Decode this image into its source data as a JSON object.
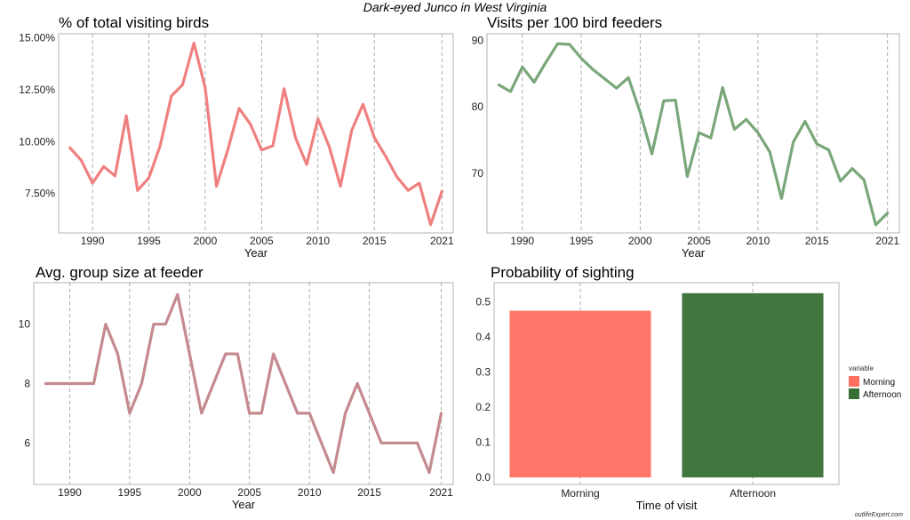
{
  "title": "Dark-eyed Junco in West Virginia",
  "credit": "outlifeExpert.com",
  "chart_data": [
    {
      "type": "line",
      "title": "% of total visiting birds",
      "xlabel": "Year",
      "ylabel": "",
      "xlim": [
        1987,
        2022
      ],
      "ylim": [
        5.6,
        15.2
      ],
      "x_ticks": [
        1990,
        1995,
        2000,
        2005,
        2010,
        2015,
        2021
      ],
      "y_ticks": [
        7.5,
        10,
        12.5,
        15
      ],
      "y_tick_labels": [
        "7.50%",
        "10.00%",
        "12.50%",
        "15.00%"
      ],
      "color": "#f08080",
      "grid": "vertical dashed",
      "series": [
        {
          "x": [
            1988,
            1989,
            1990,
            1991,
            1992,
            1993,
            1994,
            1995,
            1996,
            1997,
            1998,
            1999,
            2000,
            2001,
            2002,
            2003,
            2004,
            2005,
            2006,
            2007,
            2008,
            2009,
            2010,
            2011,
            2012,
            2013,
            2014,
            2015,
            2016,
            2017,
            2018,
            2019,
            2020,
            2021
          ],
          "values": [
            9.7,
            9.1,
            8.0,
            8.8,
            8.35,
            11.25,
            7.65,
            8.25,
            9.8,
            12.2,
            12.75,
            14.75,
            12.6,
            7.85,
            9.6,
            11.6,
            10.85,
            9.6,
            9.8,
            12.55,
            10.2,
            8.9,
            11.1,
            9.75,
            7.85,
            10.55,
            11.8,
            10.2,
            9.3,
            8.3,
            7.65,
            8.0,
            6.0,
            7.6
          ]
        }
      ]
    },
    {
      "type": "line",
      "title": "Visits per 100 bird feeders",
      "xlabel": "Year",
      "ylabel": "",
      "xlim": [
        1987,
        2022
      ],
      "ylim": [
        61,
        91
      ],
      "x_ticks": [
        1990,
        1995,
        2000,
        2005,
        2010,
        2015,
        2021
      ],
      "y_ticks": [
        70,
        80,
        90
      ],
      "y_tick_labels": [
        "70",
        "80",
        "90"
      ],
      "color": "#7aa77a",
      "grid": "vertical dashed",
      "series": [
        {
          "x": [
            1988,
            1989,
            1990,
            1991,
            1992,
            1993,
            1994,
            1995,
            1996,
            1997,
            1998,
            1999,
            2000,
            2001,
            2002,
            2003,
            2004,
            2005,
            2006,
            2007,
            2008,
            2009,
            2010,
            2011,
            2012,
            2013,
            2014,
            2015,
            2016,
            2017,
            2018,
            2019,
            2020,
            2021
          ],
          "values": [
            83.3,
            82.3,
            86.0,
            83.7,
            86.7,
            89.5,
            89.4,
            87.3,
            85.6,
            84.2,
            82.8,
            84.4,
            79.2,
            72.9,
            80.9,
            81.0,
            69.5,
            76.1,
            75.3,
            82.9,
            76.6,
            78.1,
            76.1,
            73.2,
            66.2,
            74.7,
            77.8,
            74.4,
            73.5,
            68.8,
            70.7,
            69.0,
            62.2,
            64.0
          ]
        }
      ]
    },
    {
      "type": "line",
      "title": "Avg. group size at feeder",
      "xlabel": "Year",
      "ylabel": "",
      "xlim": [
        1987,
        2022
      ],
      "ylim": [
        4.6,
        11.4
      ],
      "x_ticks": [
        1990,
        1995,
        2000,
        2005,
        2010,
        2015,
        2021
      ],
      "y_ticks": [
        6,
        8,
        10
      ],
      "y_tick_labels": [
        "6",
        "8",
        "10"
      ],
      "color": "#c48a8f",
      "grid": "vertical dashed",
      "series": [
        {
          "x": [
            1988,
            1989,
            1990,
            1991,
            1992,
            1993,
            1994,
            1995,
            1996,
            1997,
            1998,
            1999,
            2000,
            2001,
            2002,
            2003,
            2004,
            2005,
            2006,
            2007,
            2008,
            2009,
            2010,
            2011,
            2012,
            2013,
            2014,
            2015,
            2016,
            2017,
            2018,
            2019,
            2020,
            2021
          ],
          "values": [
            8,
            8,
            8,
            8,
            8,
            10,
            9,
            7,
            8,
            10,
            10,
            11,
            9,
            7,
            8,
            9,
            9,
            7,
            7,
            9,
            8,
            7,
            7,
            6,
            5,
            7,
            8,
            7,
            6,
            6,
            6,
            6,
            5,
            7
          ]
        }
      ]
    },
    {
      "type": "bar",
      "title": "Probability of sighting",
      "xlabel": "Time of visit",
      "ylabel": "",
      "categories": [
        "Morning",
        "Afternoon"
      ],
      "values": [
        0.475,
        0.525
      ],
      "colors": [
        "#ff6f61",
        "#376f35"
      ],
      "ylim": [
        -0.02,
        0.555
      ],
      "y_ticks": [
        0.0,
        0.1,
        0.2,
        0.3,
        0.4,
        0.5
      ],
      "y_tick_labels": [
        "0.0",
        "0.1",
        "0.2",
        "0.3",
        "0.4",
        "0.5"
      ],
      "grid": "vertical dashed",
      "legend": {
        "title": "variable",
        "position": "right",
        "entries": [
          "Morning",
          "Afternoon"
        ]
      }
    }
  ]
}
